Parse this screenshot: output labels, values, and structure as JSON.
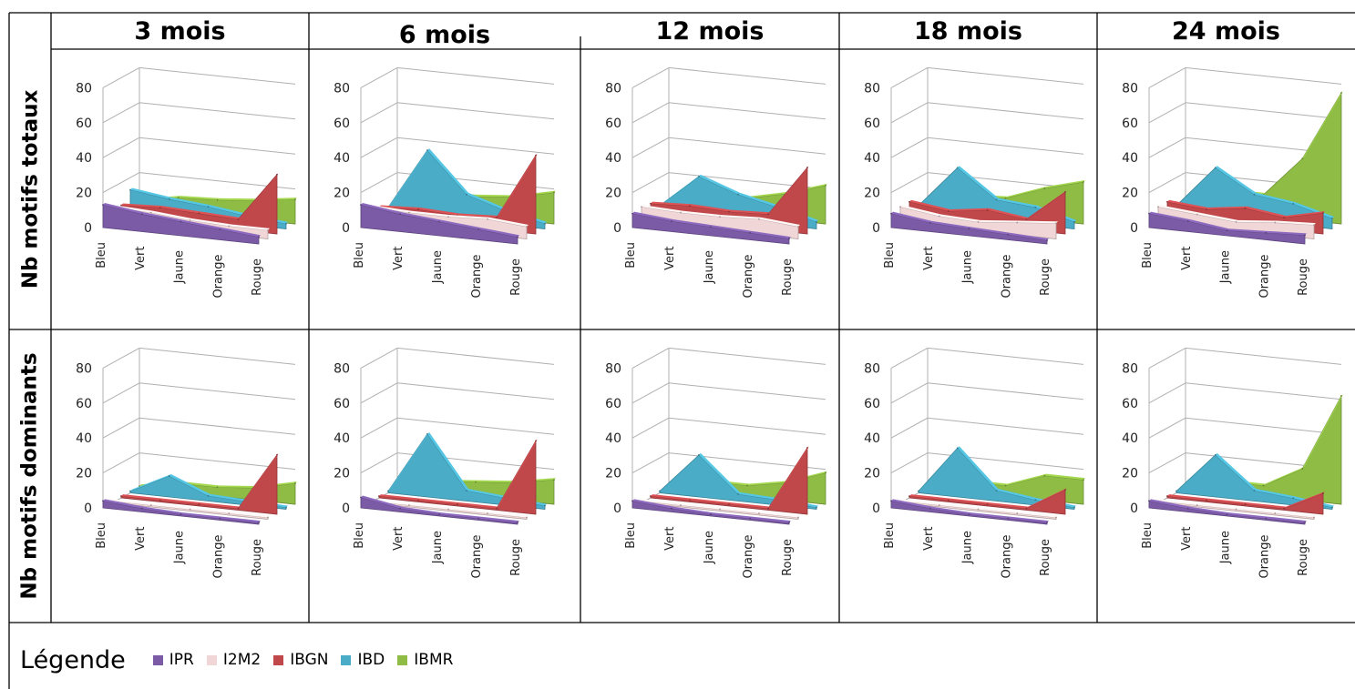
{
  "periods": [
    "3 mois",
    "6 mois",
    "12 mois",
    "18 mois",
    "24 mois"
  ],
  "rows": [
    "Nb motifs totaux",
    "Nb motifs dominants"
  ],
  "legend": {
    "title": "Légende",
    "items": [
      {
        "name": "IPR",
        "color": "#7b5ba6"
      },
      {
        "name": "I2M2",
        "color": "#f0d6d6"
      },
      {
        "name": "IBGN",
        "color": "#c0474a"
      },
      {
        "name": "IBD",
        "color": "#4aacc6"
      },
      {
        "name": "IBMR",
        "color": "#8ebc45"
      }
    ]
  },
  "chart_data": [
    {
      "type": "area",
      "row": "Nb motifs totaux",
      "title": "3 mois",
      "categories": [
        "Bleu",
        "Vert",
        "Jaune",
        "Orange",
        "Rouge"
      ],
      "ylim": [
        0,
        80
      ],
      "yticks": [
        0,
        20,
        40,
        60,
        80
      ],
      "series": [
        {
          "name": "IPR",
          "values": [
            13,
            10,
            8,
            6,
            4
          ]
        },
        {
          "name": "I2M2",
          "values": [
            9,
            8,
            6,
            5,
            5
          ]
        },
        {
          "name": "IBGN",
          "values": [
            7,
            8,
            7,
            6,
            34
          ]
        },
        {
          "name": "IBD",
          "values": [
            13,
            10,
            8,
            5,
            3
          ]
        },
        {
          "name": "IBMR",
          "values": [
            4,
            8,
            9,
            11,
            14
          ]
        }
      ]
    },
    {
      "type": "area",
      "row": "Nb motifs totaux",
      "title": "6 mois",
      "categories": [
        "Bleu",
        "Vert",
        "Jaune",
        "Orange",
        "Rouge"
      ],
      "ylim": [
        0,
        80
      ],
      "yticks": [
        0,
        20,
        40,
        60,
        80
      ],
      "series": [
        {
          "name": "IPR",
          "values": [
            13,
            10,
            8,
            6,
            4
          ]
        },
        {
          "name": "I2M2",
          "values": [
            9,
            8,
            8,
            9,
            7
          ]
        },
        {
          "name": "IBGN",
          "values": [
            6,
            7,
            6,
            7,
            45
          ]
        },
        {
          "name": "IBD",
          "values": [
            3,
            38,
            15,
            8,
            3
          ]
        },
        {
          "name": "IBMR",
          "values": [
            2,
            10,
            11,
            13,
            18
          ]
        }
      ]
    },
    {
      "type": "area",
      "row": "Nb motifs totaux",
      "title": "12 mois",
      "categories": [
        "Bleu",
        "Vert",
        "Jaune",
        "Orange",
        "Rouge"
      ],
      "ylim": [
        0,
        80
      ],
      "yticks": [
        0,
        20,
        40,
        60,
        80
      ],
      "series": [
        {
          "name": "IPR",
          "values": [
            8,
            6,
            5,
            4,
            3
          ]
        },
        {
          "name": "I2M2",
          "values": [
            9,
            8,
            8,
            9,
            7
          ]
        },
        {
          "name": "IBGN",
          "values": [
            8,
            9,
            8,
            9,
            38
          ]
        },
        {
          "name": "IBD",
          "values": [
            4,
            23,
            15,
            10,
            4
          ]
        },
        {
          "name": "IBMR",
          "values": [
            4,
            12,
            10,
            15,
            22
          ]
        }
      ]
    },
    {
      "type": "area",
      "row": "Nb motifs totaux",
      "title": "18 mois",
      "categories": [
        "Bleu",
        "Vert",
        "Jaune",
        "Orange",
        "Rouge"
      ],
      "ylim": [
        0,
        80
      ],
      "yticks": [
        0,
        20,
        40,
        60,
        80
      ],
      "series": [
        {
          "name": "IPR",
          "values": [
            8,
            5,
            4,
            3,
            2
          ]
        },
        {
          "name": "I2M2",
          "values": [
            9,
            6,
            5,
            7,
            9
          ]
        },
        {
          "name": "IBGN",
          "values": [
            9,
            6,
            9,
            6,
            24
          ]
        },
        {
          "name": "IBD",
          "values": [
            4,
            28,
            12,
            10,
            4
          ]
        },
        {
          "name": "IBMR",
          "values": [
            4,
            9,
            10,
            18,
            24
          ]
        }
      ]
    },
    {
      "type": "area",
      "row": "Nb motifs totaux",
      "title": "24 mois",
      "categories": [
        "Bleu",
        "Vert",
        "Jaune",
        "Orange",
        "Rouge"
      ],
      "ylim": [
        0,
        80
      ],
      "yticks": [
        0,
        20,
        40,
        60,
        80
      ],
      "series": [
        {
          "name": "IPR",
          "values": [
            8,
            6,
            3,
            4,
            5
          ]
        },
        {
          "name": "I2M2",
          "values": [
            9,
            7,
            5,
            7,
            8
          ]
        },
        {
          "name": "IBGN",
          "values": [
            9,
            7,
            10,
            7,
            12
          ]
        },
        {
          "name": "IBD",
          "values": [
            4,
            28,
            15,
            12,
            6
          ]
        },
        {
          "name": "IBMR",
          "values": [
            4,
            12,
            12,
            35,
            75
          ]
        }
      ]
    },
    {
      "type": "area",
      "row": "Nb motifs dominants",
      "title": "3 mois",
      "categories": [
        "Bleu",
        "Vert",
        "Jaune",
        "Orange",
        "Rouge"
      ],
      "ylim": [
        0,
        80
      ],
      "yticks": [
        0,
        20,
        40,
        60,
        80
      ],
      "series": [
        {
          "name": "IPR",
          "values": [
            4,
            2,
            1,
            1,
            1
          ]
        },
        {
          "name": "I2M2",
          "values": [
            1,
            1,
            1,
            1,
            1
          ]
        },
        {
          "name": "IBGN",
          "values": [
            1,
            1,
            1,
            1,
            34
          ]
        },
        {
          "name": "IBD",
          "values": [
            1,
            12,
            3,
            2,
            1
          ]
        },
        {
          "name": "IBMR",
          "values": [
            1,
            5,
            5,
            7,
            12
          ]
        }
      ]
    },
    {
      "type": "area",
      "row": "Nb motifs dominants",
      "title": "6 mois",
      "categories": [
        "Bleu",
        "Vert",
        "Jaune",
        "Orange",
        "Rouge"
      ],
      "ylim": [
        0,
        80
      ],
      "yticks": [
        0,
        20,
        40,
        60,
        80
      ],
      "series": [
        {
          "name": "IPR",
          "values": [
            6,
            2,
            1,
            1,
            1
          ]
        },
        {
          "name": "I2M2",
          "values": [
            1,
            1,
            1,
            1,
            1
          ]
        },
        {
          "name": "IBGN",
          "values": [
            1,
            1,
            1,
            1,
            42
          ]
        },
        {
          "name": "IBD",
          "values": [
            1,
            36,
            6,
            4,
            2
          ]
        },
        {
          "name": "IBMR",
          "values": [
            1,
            6,
            8,
            10,
            14
          ]
        }
      ]
    },
    {
      "type": "area",
      "row": "Nb motifs dominants",
      "title": "12 mois",
      "categories": [
        "Bleu",
        "Vert",
        "Jaune",
        "Orange",
        "Rouge"
      ],
      "ylim": [
        0,
        80
      ],
      "yticks": [
        0,
        20,
        40,
        60,
        80
      ],
      "series": [
        {
          "name": "IPR",
          "values": [
            4,
            2,
            1,
            1,
            1
          ]
        },
        {
          "name": "I2M2",
          "values": [
            1,
            1,
            1,
            1,
            1
          ]
        },
        {
          "name": "IBGN",
          "values": [
            1,
            1,
            1,
            1,
            38
          ]
        },
        {
          "name": "IBD",
          "values": [
            1,
            24,
            4,
            3,
            1
          ]
        },
        {
          "name": "IBMR",
          "values": [
            1,
            6,
            6,
            10,
            18
          ]
        }
      ]
    },
    {
      "type": "area",
      "row": "Nb motifs dominants",
      "title": "18 mois",
      "categories": [
        "Bleu",
        "Vert",
        "Jaune",
        "Orange",
        "Rouge"
      ],
      "ylim": [
        0,
        80
      ],
      "yticks": [
        0,
        20,
        40,
        60,
        80
      ],
      "series": [
        {
          "name": "IPR",
          "values": [
            4,
            2,
            1,
            1,
            1
          ]
        },
        {
          "name": "I2M2",
          "values": [
            1,
            1,
            1,
            1,
            1
          ]
        },
        {
          "name": "IBGN",
          "values": [
            1,
            1,
            1,
            1,
            14
          ]
        },
        {
          "name": "IBD",
          "values": [
            1,
            28,
            6,
            3,
            1
          ]
        },
        {
          "name": "IBMR",
          "values": [
            1,
            6,
            6,
            14,
            14
          ]
        }
      ]
    },
    {
      "type": "area",
      "row": "Nb motifs dominants",
      "title": "24 mois",
      "categories": [
        "Bleu",
        "Vert",
        "Jaune",
        "Orange",
        "Rouge"
      ],
      "ylim": [
        0,
        80
      ],
      "yticks": [
        0,
        20,
        40,
        60,
        80
      ],
      "series": [
        {
          "name": "IPR",
          "values": [
            4,
            2,
            1,
            1,
            1
          ]
        },
        {
          "name": "I2M2",
          "values": [
            1,
            1,
            1,
            1,
            1
          ]
        },
        {
          "name": "IBGN",
          "values": [
            1,
            1,
            1,
            1,
            12
          ]
        },
        {
          "name": "IBD",
          "values": [
            1,
            24,
            6,
            4,
            1
          ]
        },
        {
          "name": "IBMR",
          "values": [
            1,
            6,
            6,
            18,
            62
          ]
        }
      ]
    }
  ]
}
